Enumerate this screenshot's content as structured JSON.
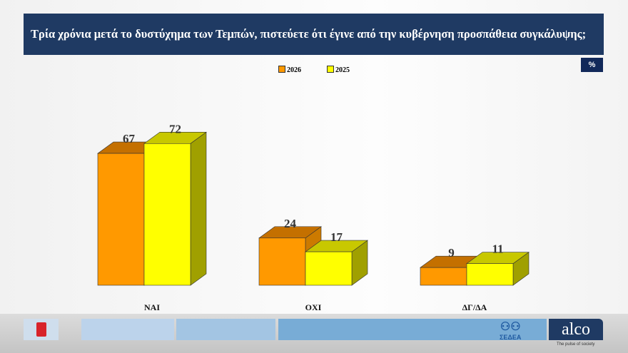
{
  "title": "Τρία χρόνια μετά το δυστύχημα των Τεμπών, πιστεύετε ότι έγινε από την κυβέρνηση προσπάθεια συγκάλυψης;",
  "unit_badge": "%",
  "chart_data": {
    "type": "bar",
    "style": "3d-clustered",
    "categories": [
      "ΝΑΙ",
      "ΟΧΙ",
      "ΔΓ/ΔΑ"
    ],
    "series": [
      {
        "name": "2026",
        "values": [
          67,
          24,
          9
        ],
        "color": "#ff9900"
      },
      {
        "name": "2025",
        "values": [
          72,
          17,
          11
        ],
        "color": "#ffff00"
      }
    ],
    "legend_position": "top",
    "grid": false,
    "ylim": [
      0,
      80
    ]
  },
  "footer": {
    "sedea_label": "ΣΕΔΕΑ",
    "alco_logo": "alco",
    "alco_tagline": "The pulse of society"
  }
}
